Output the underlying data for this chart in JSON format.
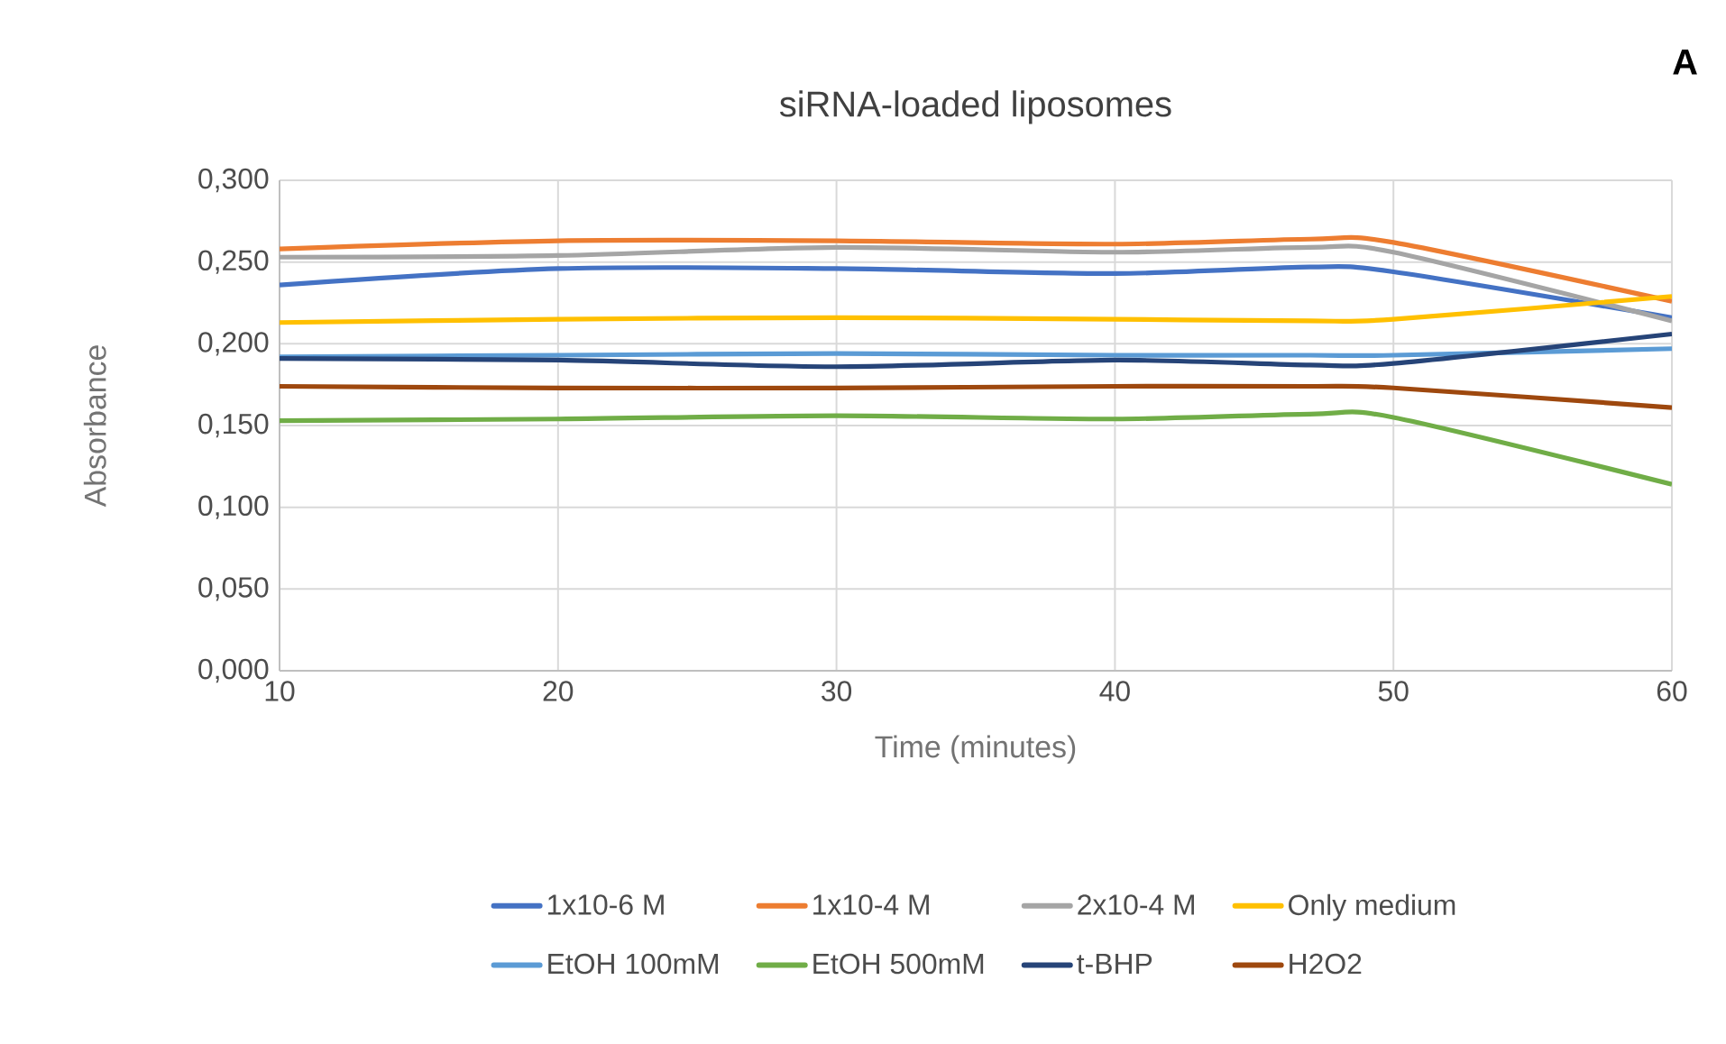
{
  "chart_data": {
    "type": "line",
    "title": "siRNA-loaded liposomes",
    "xlabel": "Time (minutes)",
    "ylabel": "Absorbance",
    "annotations": [
      "A"
    ],
    "x": [
      10,
      20,
      30,
      40,
      47,
      50,
      60
    ],
    "xlim": [
      10,
      60
    ],
    "xticks": [
      10,
      20,
      30,
      40,
      50,
      60
    ],
    "ylim": [
      0,
      0.3
    ],
    "yticks": [
      {
        "value": 0,
        "label": "0,000"
      },
      {
        "value": 0.05,
        "label": "0,050"
      },
      {
        "value": 0.1,
        "label": "0,100"
      },
      {
        "value": 0.15,
        "label": "0,150"
      },
      {
        "value": 0.2,
        "label": "0,200"
      },
      {
        "value": 0.25,
        "label": "0,250"
      },
      {
        "value": 0.3,
        "label": "0,300"
      }
    ],
    "grid": true,
    "legend": "bottom",
    "marker": "none",
    "line_style": "solid",
    "series": [
      {
        "name": "1x10-6 M",
        "color": "#4472c4",
        "values": [
          0.236,
          0.246,
          0.246,
          0.243,
          0.247,
          0.244,
          0.216
        ]
      },
      {
        "name": "1x10-4 M",
        "color": "#ed7d31",
        "values": [
          0.258,
          0.263,
          0.263,
          0.261,
          0.264,
          0.262,
          0.226
        ]
      },
      {
        "name": "2x10-4 M",
        "color": "#a5a5a5",
        "values": [
          0.253,
          0.254,
          0.259,
          0.256,
          0.259,
          0.256,
          0.214
        ]
      },
      {
        "name": "Only medium",
        "color": "#ffc000",
        "values": [
          0.213,
          0.215,
          0.216,
          0.215,
          0.214,
          0.215,
          0.229
        ]
      },
      {
        "name": "EtOH 100mM",
        "color": "#5b9bd5",
        "values": [
          0.192,
          0.193,
          0.194,
          0.193,
          0.193,
          0.193,
          0.197
        ]
      },
      {
        "name": "EtOH 500mM",
        "color": "#70ad47",
        "values": [
          0.153,
          0.154,
          0.156,
          0.154,
          0.157,
          0.155,
          0.114
        ]
      },
      {
        "name": "t-BHP",
        "color": "#264478",
        "values": [
          0.191,
          0.19,
          0.186,
          0.19,
          0.187,
          0.188,
          0.206
        ]
      },
      {
        "name": "H2O2",
        "color": "#9e480e",
        "values": [
          0.174,
          0.173,
          0.173,
          0.174,
          0.174,
          0.173,
          0.161
        ]
      }
    ]
  }
}
